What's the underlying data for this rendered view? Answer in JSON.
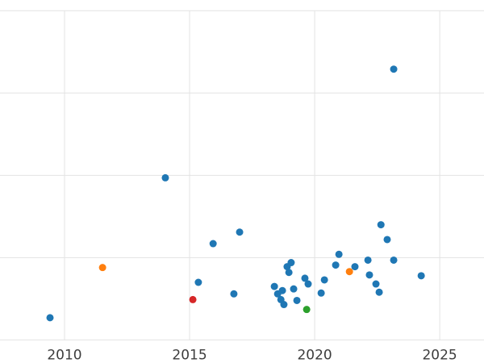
{
  "chart_data": {
    "type": "scatter",
    "title": "",
    "xlabel": "",
    "ylabel": "",
    "x_tick_labels": [
      "2010",
      "2015",
      "2020",
      "2025"
    ],
    "x_tick_values": [
      2010,
      2015,
      2020,
      2025
    ],
    "y_gridline_values": [
      0,
      1,
      2,
      3,
      4
    ],
    "y_tick_labels_visible": false,
    "xlim": [
      2007.42,
      2026.77
    ],
    "ylim": [
      -0.28,
      4.13
    ],
    "grid": true,
    "legend": false,
    "point_colors": {
      "blue": "#1f77b4",
      "orange": "#ff7f0e",
      "green": "#2ca02c",
      "red": "#d62728"
    },
    "points": [
      {
        "x": 2009.42,
        "y": 0.27,
        "c": "blue"
      },
      {
        "x": 2011.52,
        "y": 0.88,
        "c": "orange"
      },
      {
        "x": 2014.03,
        "y": 1.97,
        "c": "blue"
      },
      {
        "x": 2015.13,
        "y": 0.49,
        "c": "red"
      },
      {
        "x": 2015.35,
        "y": 0.7,
        "c": "blue"
      },
      {
        "x": 2015.94,
        "y": 1.17,
        "c": "blue"
      },
      {
        "x": 2016.77,
        "y": 0.56,
        "c": "blue"
      },
      {
        "x": 2017.0,
        "y": 1.31,
        "c": "blue"
      },
      {
        "x": 2018.39,
        "y": 0.65,
        "c": "blue"
      },
      {
        "x": 2018.52,
        "y": 0.56,
        "c": "blue"
      },
      {
        "x": 2018.65,
        "y": 0.49,
        "c": "blue"
      },
      {
        "x": 2018.71,
        "y": 0.6,
        "c": "blue"
      },
      {
        "x": 2018.77,
        "y": 0.43,
        "c": "blue"
      },
      {
        "x": 2018.9,
        "y": 0.89,
        "c": "blue"
      },
      {
        "x": 2018.97,
        "y": 0.82,
        "c": "blue"
      },
      {
        "x": 2019.06,
        "y": 0.94,
        "c": "blue"
      },
      {
        "x": 2019.16,
        "y": 0.62,
        "c": "blue"
      },
      {
        "x": 2019.29,
        "y": 0.48,
        "c": "blue"
      },
      {
        "x": 2019.61,
        "y": 0.75,
        "c": "blue"
      },
      {
        "x": 2019.68,
        "y": 0.37,
        "c": "green"
      },
      {
        "x": 2019.74,
        "y": 0.68,
        "c": "blue"
      },
      {
        "x": 2020.26,
        "y": 0.57,
        "c": "blue"
      },
      {
        "x": 2020.39,
        "y": 0.73,
        "c": "blue"
      },
      {
        "x": 2020.84,
        "y": 0.91,
        "c": "blue"
      },
      {
        "x": 2020.97,
        "y": 1.04,
        "c": "blue"
      },
      {
        "x": 2021.39,
        "y": 0.83,
        "c": "orange"
      },
      {
        "x": 2021.61,
        "y": 0.89,
        "c": "blue"
      },
      {
        "x": 2022.13,
        "y": 0.97,
        "c": "blue"
      },
      {
        "x": 2022.19,
        "y": 0.79,
        "c": "blue"
      },
      {
        "x": 2022.45,
        "y": 0.68,
        "c": "blue"
      },
      {
        "x": 2022.58,
        "y": 0.58,
        "c": "blue"
      },
      {
        "x": 2022.65,
        "y": 1.4,
        "c": "blue"
      },
      {
        "x": 2022.9,
        "y": 1.22,
        "c": "blue"
      },
      {
        "x": 2023.16,
        "y": 3.29,
        "c": "blue"
      },
      {
        "x": 2023.16,
        "y": 0.97,
        "c": "blue"
      },
      {
        "x": 2024.26,
        "y": 0.78,
        "c": "blue"
      }
    ],
    "point_radius": 4.5
  },
  "style": {
    "background": "#ffffff",
    "grid_color": "#e3e3e3",
    "tick_label_color": "#3d3d3d"
  }
}
